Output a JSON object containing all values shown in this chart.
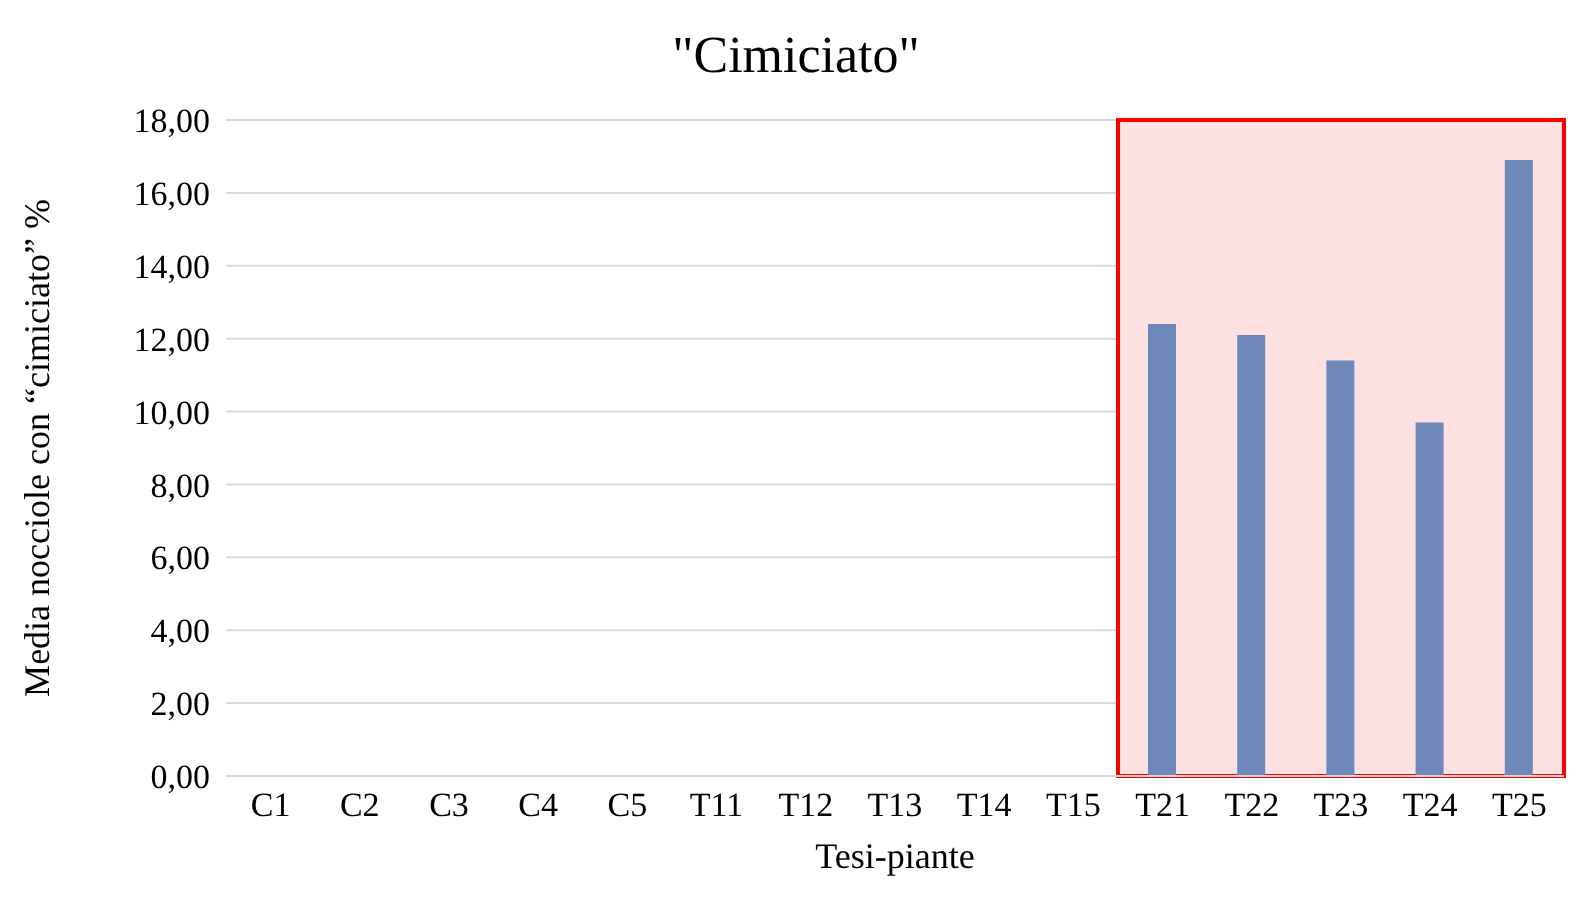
{
  "chart_data": {
    "type": "bar",
    "title": "\"Cimiciato\"",
    "xlabel": "Tesi-piante",
    "ylabel": "Media nocciole con  “cimiciato” %",
    "categories": [
      "C1",
      "C2",
      "C3",
      "C4",
      "C5",
      "T11",
      "T12",
      "T13",
      "T14",
      "T15",
      "T21",
      "T22",
      "T23",
      "T24",
      "T25"
    ],
    "values": [
      0,
      0,
      0,
      0,
      0,
      0,
      0,
      0,
      0,
      0,
      12.4,
      12.1,
      11.4,
      9.7,
      16.9
    ],
    "color": "#6f88ba",
    "ylim": [
      0,
      18
    ],
    "yticks": [
      {
        "value": 0,
        "label": "0,00"
      },
      {
        "value": 2,
        "label": "2,00"
      },
      {
        "value": 4,
        "label": "4,00"
      },
      {
        "value": 6,
        "label": "6,00"
      },
      {
        "value": 8,
        "label": "8,00"
      },
      {
        "value": 10,
        "label": "10,00"
      },
      {
        "value": 12,
        "label": "12,00"
      },
      {
        "value": 14,
        "label": "14,00"
      },
      {
        "value": 16,
        "label": "16,00"
      },
      {
        "value": 18,
        "label": "18,00"
      }
    ],
    "grid": "y",
    "bands": [
      {
        "axis": "x",
        "from": "T21",
        "to": "T25",
        "color": "#fde0e0"
      }
    ]
  }
}
